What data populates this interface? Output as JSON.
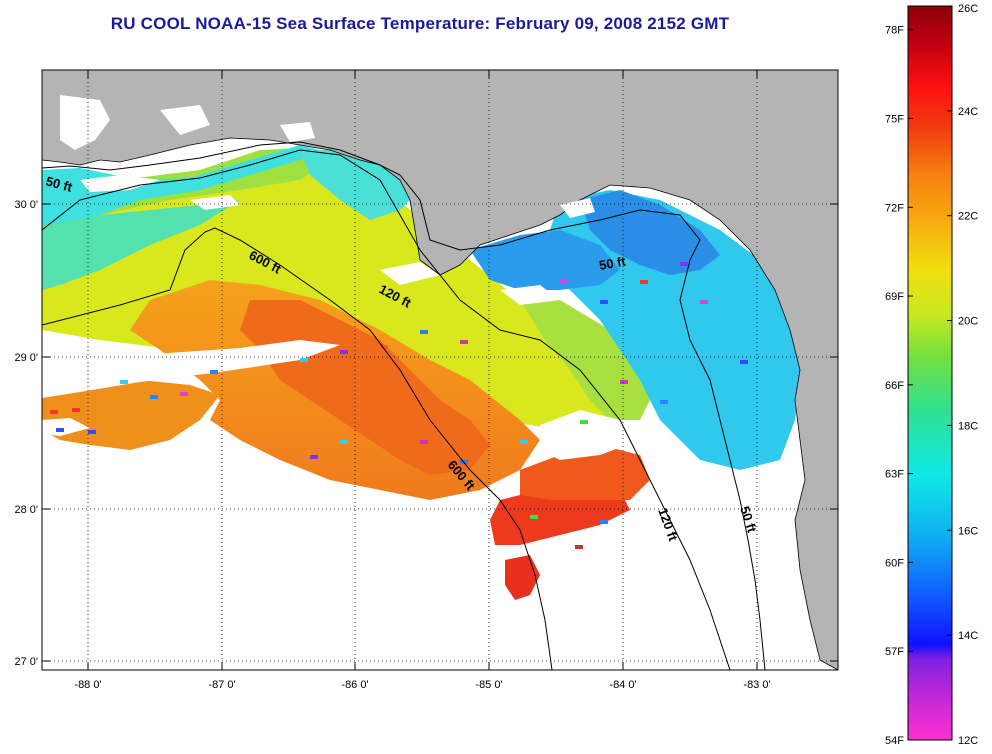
{
  "title": "RU COOL  NOAA-15  Sea Surface Temperature:  February 09, 2008 2152 GMT",
  "map": {
    "lon_ticks": [
      "-88 0'",
      "-87 0'",
      "-86 0'",
      "-85 0'",
      "-84 0'",
      "-83 0'"
    ],
    "lat_ticks": [
      "30 0'",
      "29 0'",
      "28 0'",
      "27 0'"
    ],
    "depth_labels": {
      "d50_west": "50 ft",
      "d600_north": "600 ft",
      "d120_north": "120 ft",
      "d50_east": "50 ft",
      "d600_south": "600 ft",
      "d120_south": "120 ft",
      "d50_south": "50 ft"
    },
    "colors": {
      "land": "#b4b4b4",
      "cloud": "#ffffff",
      "frame": "#000000",
      "grid": "#000000"
    }
  },
  "colorbar": {
    "fahrenheit": [
      "78F",
      "75F",
      "72F",
      "69F",
      "66F",
      "63F",
      "60F",
      "57F",
      "54F"
    ],
    "celsius": [
      "26C",
      "24C",
      "22C",
      "20C",
      "18C",
      "16C",
      "14C",
      "12C"
    ],
    "range_celsius": [
      12,
      26
    ],
    "range_fahrenheit": [
      54,
      78.8
    ]
  }
}
